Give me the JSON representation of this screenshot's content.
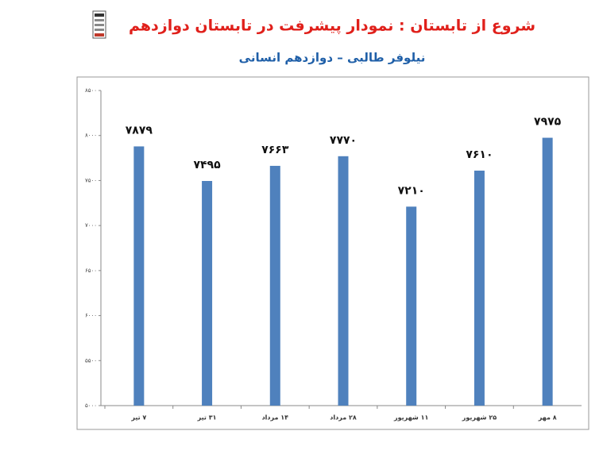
{
  "chart_data": {
    "type": "bar",
    "title": "شروع از تابستان : نمودار پیشرفت در تابستان دوازدهم",
    "subtitle": "نیلوفر طالبی – دوازدهم انسانی",
    "categories": [
      "۷ تیر",
      "۳۱ تیر",
      "۱۴ مرداد",
      "۲۸ مرداد",
      "۱۱ شهریور",
      "۲۵ شهریور",
      "۸ مهر"
    ],
    "values": [
      7879,
      7495,
      7663,
      7770,
      7210,
      7610,
      7975
    ],
    "value_labels": [
      "۷۸۷۹",
      "۷۴۹۵",
      "۷۶۶۳",
      "۷۷۷۰",
      "۷۲۱۰",
      "۷۶۱۰",
      "۷۹۷۵"
    ],
    "color": "#4f81bd",
    "ylim": [
      5000,
      8500
    ],
    "yticks": [
      {
        "value": 5000,
        "label": "۵۰۰۰"
      },
      {
        "value": 5500,
        "label": "۵۵۰۰"
      },
      {
        "value": 6000,
        "label": "۶۰۰۰"
      },
      {
        "value": 6500,
        "label": "۶۵۰۰"
      },
      {
        "value": 7000,
        "label": "۷۰۰۰"
      },
      {
        "value": 7500,
        "label": "۷۵۰۰"
      },
      {
        "value": 8000,
        "label": "۸۰۰۰"
      },
      {
        "value": 8500,
        "label": "۸۵۰۰"
      }
    ],
    "grid": false
  }
}
